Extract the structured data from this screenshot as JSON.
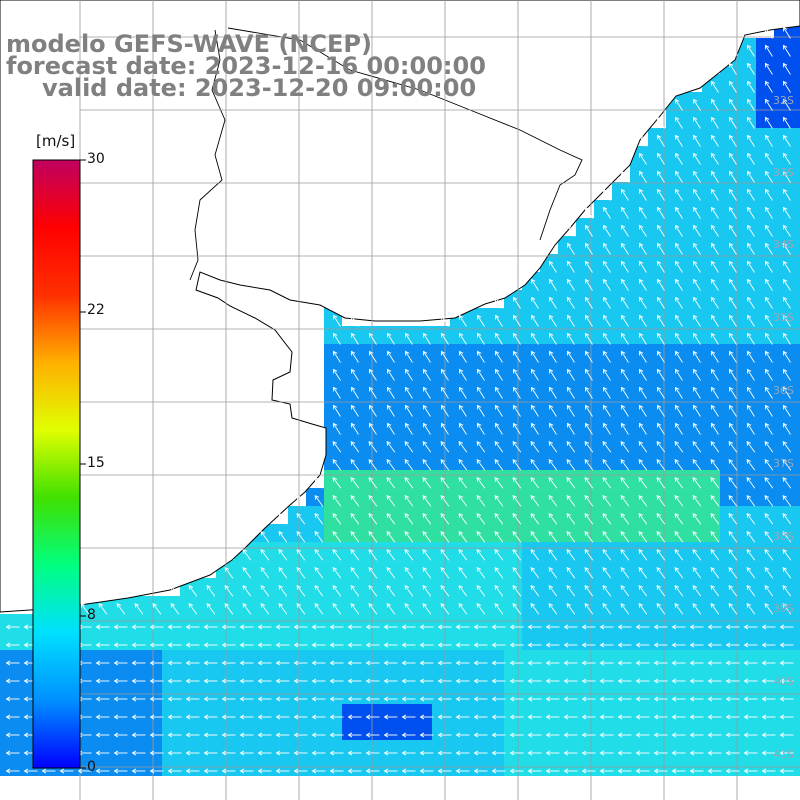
{
  "titles": {
    "line1": "modelo GEFS-WAVE (NCEP)",
    "line2": "forecast date: 2023-12-16 00:00:00",
    "line3": "valid date: 2023-12-20 09:00:00"
  },
  "colorbar": {
    "unit": "[m/s]",
    "ticks": [
      "30",
      "22",
      "15",
      "8",
      "0"
    ],
    "colors": [
      "#0000ff",
      "#0090ff",
      "#00e0ff",
      "#00ff80",
      "#40e000",
      "#e0ff00",
      "#ffb000",
      "#ff3000",
      "#ff0000",
      "#c00060"
    ]
  },
  "lat_labels": [
    "32S",
    "33S",
    "34S",
    "35S",
    "36S",
    "37S",
    "38S",
    "39S",
    "40S",
    "41S"
  ],
  "map": {
    "land_color": "#ffffff",
    "coast_color": "#000000",
    "grid_color": "#9a9a9a",
    "arrow_color": "#ffffff",
    "palette": {
      "deep_blue": "#0050f0",
      "blue": "#0a8cf0",
      "cyan": "#19c8f0",
      "light_cyan": "#20dde8",
      "green": "#30e0a0"
    }
  }
}
